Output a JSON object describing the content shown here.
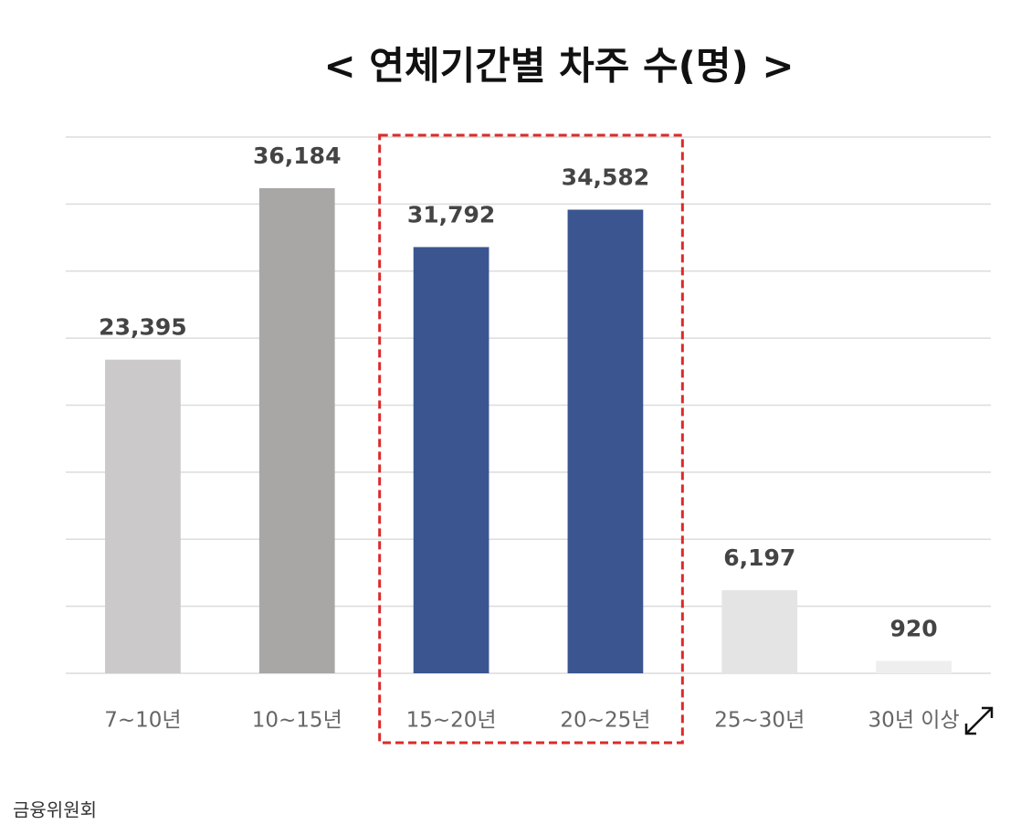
{
  "chart_data": {
    "type": "bar",
    "title": "< 연체기간별 차주 수(명) >",
    "categories": [
      "7~10년",
      "10~15년",
      "15~20년",
      "20~25년",
      "25~30년",
      "30년 이상"
    ],
    "values": [
      23395,
      36184,
      31792,
      34582,
      6197,
      920
    ],
    "value_labels": [
      "23,395",
      "36,184",
      "31,792",
      "34,582",
      "6,197",
      "920"
    ],
    "colors": [
      "#cbc9ca",
      "#a9a6a6",
      "#3a5590",
      "#3a5590",
      "#e4e4e4",
      "#eeeeee"
    ],
    "ylim": [
      0,
      40000
    ],
    "yticks": [
      0,
      5000,
      10000,
      15000,
      20000,
      25000,
      30000,
      35000,
      40000
    ],
    "grid": true,
    "highlight": {
      "from": 2,
      "to": 3,
      "color": "#dd2a2a"
    }
  },
  "source": "금융위원회"
}
